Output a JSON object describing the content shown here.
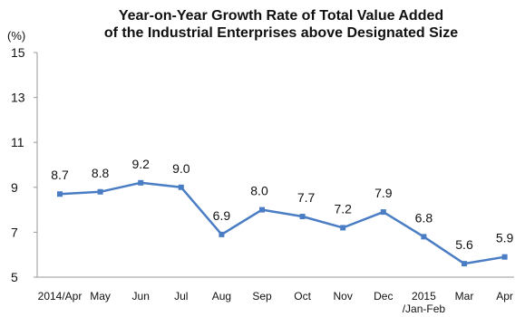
{
  "chart_data": {
    "type": "line",
    "title_lines": [
      "Year-on-Year Growth Rate of Total Value Added",
      "of the Industrial Enterprises above Designated Size"
    ],
    "ylabel": "(%)",
    "xlabel": "",
    "ylim": [
      5,
      15
    ],
    "yticks": [
      "15",
      "13",
      "11",
      "9",
      "7",
      "5"
    ],
    "ytick_values": [
      15,
      13,
      11,
      9,
      7,
      5
    ],
    "grid": false,
    "legend": "none",
    "categories": [
      [
        "2014/Apr"
      ],
      [
        "May"
      ],
      [
        "Jun"
      ],
      [
        "Jul"
      ],
      [
        "Aug"
      ],
      [
        "Sep"
      ],
      [
        "Oct"
      ],
      [
        "Nov"
      ],
      [
        "Dec"
      ],
      [
        "2015",
        "/Jan-Feb"
      ],
      [
        "Mar"
      ],
      [
        "Apr"
      ]
    ],
    "values": [
      8.7,
      8.8,
      9.2,
      9.0,
      6.9,
      8.0,
      7.7,
      7.2,
      7.9,
      6.8,
      5.6,
      5.9
    ],
    "value_labels": [
      "8.7",
      "8.8",
      "9.2",
      "9.0",
      "6.9",
      "8.0",
      "7.7",
      "7.2",
      "7.9",
      "6.8",
      "5.6",
      "5.9"
    ],
    "colors": {
      "line": "#4a7dc4",
      "marker": "#4a7dc4",
      "axis": "#9a9a9a",
      "text": "#111111"
    }
  }
}
